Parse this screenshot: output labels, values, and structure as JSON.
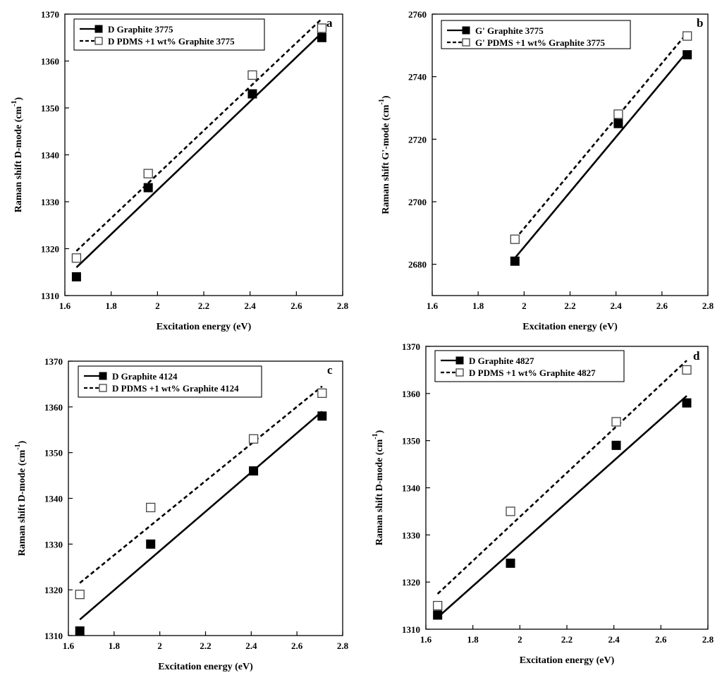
{
  "figure": {
    "panels": [
      "a",
      "b",
      "c",
      "d"
    ]
  },
  "chart_data": [
    {
      "type": "scatter",
      "panel_label": "a",
      "xlabel": "Excitation energy (eV)",
      "ylabel_main": "Raman shift D-mode (cm",
      "ylabel_sup": "-1",
      "ylabel_end": ")",
      "xlim": [
        1.6,
        2.8
      ],
      "ylim": [
        1310,
        1370
      ],
      "x_ticks": [
        1.6,
        1.8,
        2.0,
        2.2,
        2.4,
        2.6,
        2.8
      ],
      "x_tick_labels": [
        "1.6",
        "1.8",
        "2",
        "2.2",
        "2.4",
        "2.6",
        "2.8"
      ],
      "y_ticks": [
        1310,
        1320,
        1330,
        1340,
        1350,
        1360,
        1370
      ],
      "y_tick_labels": [
        "1310",
        "1320",
        "1330",
        "1340",
        "1350",
        "1360",
        "1370"
      ],
      "legend_position": "top-left",
      "series": [
        {
          "name": "D Graphite 3775",
          "marker": "filled-square",
          "line": "solid",
          "x": [
            1.65,
            1.96,
            2.41,
            2.71
          ],
          "y": [
            1314,
            1333,
            1353,
            1365
          ],
          "fit": [
            [
              1.65,
              1316
            ],
            [
              2.71,
              1366
            ]
          ]
        },
        {
          "name": "D PDMS +1 wt% Graphite 3775",
          "marker": "open-square",
          "line": "dashed",
          "x": [
            1.65,
            1.96,
            2.41,
            2.71
          ],
          "y": [
            1318,
            1336,
            1357,
            1367
          ],
          "fit": [
            [
              1.65,
              1319.5
            ],
            [
              2.71,
              1369
            ]
          ]
        }
      ]
    },
    {
      "type": "scatter",
      "panel_label": "b",
      "xlabel": "Excitation energy (eV)",
      "ylabel_main": "Raman shift G'-mode (cm",
      "ylabel_sup": "-1",
      "ylabel_end": ")",
      "xlim": [
        1.6,
        2.8
      ],
      "ylim": [
        2670,
        2760
      ],
      "x_ticks": [
        1.6,
        1.8,
        2.0,
        2.2,
        2.4,
        2.6,
        2.8
      ],
      "x_tick_labels": [
        "1.6",
        "1.8",
        "2",
        "2.2",
        "2.4",
        "2.6",
        "2.8"
      ],
      "y_ticks": [
        2680,
        2700,
        2720,
        2740,
        2760
      ],
      "y_tick_labels": [
        "2680",
        "2700",
        "2720",
        "2740",
        "2760"
      ],
      "legend_position": "top-left",
      "series": [
        {
          "name": "G' Graphite 3775",
          "marker": "filled-square",
          "line": "solid",
          "x": [
            1.96,
            2.41,
            2.71
          ],
          "y": [
            2681,
            2725,
            2747
          ],
          "fit": [
            [
              1.96,
              2682
            ],
            [
              2.71,
              2748
            ]
          ]
        },
        {
          "name": "G' PDMS +1 wt% Graphite 3775",
          "marker": "open-square",
          "line": "dashed",
          "x": [
            1.96,
            2.41,
            2.71
          ],
          "y": [
            2688,
            2728,
            2753
          ],
          "fit": [
            [
              1.96,
              2688
            ],
            [
              2.71,
              2754
            ]
          ]
        }
      ]
    },
    {
      "type": "scatter",
      "panel_label": "c",
      "xlabel": "Excitation energy (eV)",
      "ylabel_main": "Raman shift D-mode (cm",
      "ylabel_sup": "-1",
      "ylabel_end": ")",
      "xlim": [
        1.6,
        2.8
      ],
      "ylim": [
        1310,
        1370
      ],
      "x_ticks": [
        1.6,
        1.8,
        2.0,
        2.2,
        2.4,
        2.6,
        2.8
      ],
      "x_tick_labels": [
        "1.6",
        "1.8",
        "2",
        "2.2",
        "2.4",
        "2.6",
        "2.8"
      ],
      "y_ticks": [
        1310,
        1320,
        1330,
        1340,
        1350,
        1360,
        1370
      ],
      "y_tick_labels": [
        "1310",
        "1320",
        "1330",
        "1340",
        "1350",
        "1360",
        "1370"
      ],
      "legend_position": "top-left",
      "series": [
        {
          "name": "D Graphite 4124",
          "marker": "filled-square",
          "line": "solid",
          "x": [
            1.65,
            1.96,
            2.41,
            2.71
          ],
          "y": [
            1311,
            1330,
            1346,
            1358
          ],
          "fit": [
            [
              1.65,
              1313.5
            ],
            [
              2.71,
              1359
            ]
          ]
        },
        {
          "name": "D PDMS +1 wt% Graphite 4124",
          "marker": "open-square",
          "line": "dashed",
          "x": [
            1.65,
            1.96,
            2.41,
            2.71
          ],
          "y": [
            1319,
            1338,
            1353,
            1363
          ],
          "fit": [
            [
              1.65,
              1321.5
            ],
            [
              2.71,
              1364.5
            ]
          ]
        }
      ]
    },
    {
      "type": "scatter",
      "panel_label": "d",
      "xlabel": "Excitation energy (eV)",
      "ylabel_main": "Raman shift D-mode (cm",
      "ylabel_sup": "-1",
      "ylabel_end": ")",
      "xlim": [
        1.6,
        2.8
      ],
      "ylim": [
        1310,
        1370
      ],
      "x_ticks": [
        1.6,
        1.8,
        2.0,
        2.2,
        2.4,
        2.6,
        2.8
      ],
      "x_tick_labels": [
        "1.6",
        "1.8",
        "2",
        "2.2",
        "2.4",
        "2.6",
        "2.8"
      ],
      "y_ticks": [
        1310,
        1320,
        1330,
        1340,
        1350,
        1360,
        1370
      ],
      "y_tick_labels": [
        "1310",
        "1320",
        "1330",
        "1340",
        "1350",
        "1360",
        "1370"
      ],
      "legend_position": "top-left",
      "series": [
        {
          "name": "D Graphite 4827",
          "marker": "filled-square",
          "line": "solid",
          "x": [
            1.65,
            1.96,
            2.41,
            2.71
          ],
          "y": [
            1313,
            1324,
            1349,
            1358
          ],
          "fit": [
            [
              1.65,
              1312.5
            ],
            [
              2.71,
              1359.5
            ]
          ]
        },
        {
          "name": "D PDMS +1 wt% Graphite 4827",
          "marker": "open-square",
          "line": "dashed",
          "x": [
            1.65,
            1.96,
            2.41,
            2.71
          ],
          "y": [
            1315,
            1335,
            1354,
            1365
          ],
          "fit": [
            [
              1.65,
              1317.5
            ],
            [
              2.71,
              1367
            ]
          ]
        }
      ]
    }
  ]
}
